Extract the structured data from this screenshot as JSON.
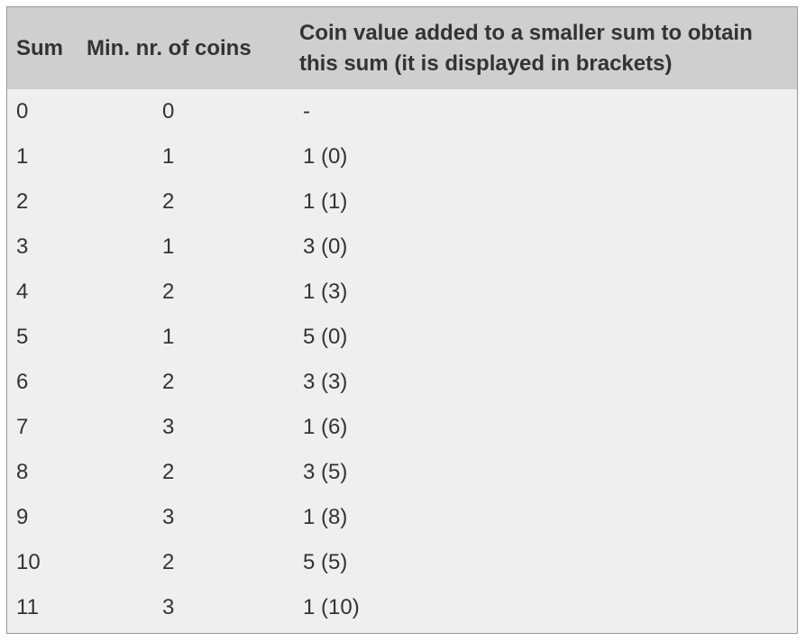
{
  "table": {
    "headers": {
      "sum": "Sum",
      "min_coins": "Min. nr. of coins",
      "coin_value": "Coin value added to a smaller sum to obtain this sum (it is displayed in brackets)"
    },
    "rows": [
      {
        "sum": "0",
        "min_coins": "0",
        "coin_value": "-"
      },
      {
        "sum": "1",
        "min_coins": "1",
        "coin_value": "1 (0)"
      },
      {
        "sum": "2",
        "min_coins": "2",
        "coin_value": "1 (1)"
      },
      {
        "sum": "3",
        "min_coins": "1",
        "coin_value": "3 (0)"
      },
      {
        "sum": "4",
        "min_coins": "2",
        "coin_value": "1 (3)"
      },
      {
        "sum": "5",
        "min_coins": "1",
        "coin_value": "5 (0)"
      },
      {
        "sum": "6",
        "min_coins": "2",
        "coin_value": "3 (3)"
      },
      {
        "sum": "7",
        "min_coins": "3",
        "coin_value": "1 (6)"
      },
      {
        "sum": "8",
        "min_coins": "2",
        "coin_value": "3 (5)"
      },
      {
        "sum": "9",
        "min_coins": "3",
        "coin_value": "1 (8)"
      },
      {
        "sum": "10",
        "min_coins": "2",
        "coin_value": "5 (5)"
      },
      {
        "sum": "11",
        "min_coins": "3",
        "coin_value": "1 (10)"
      }
    ]
  }
}
